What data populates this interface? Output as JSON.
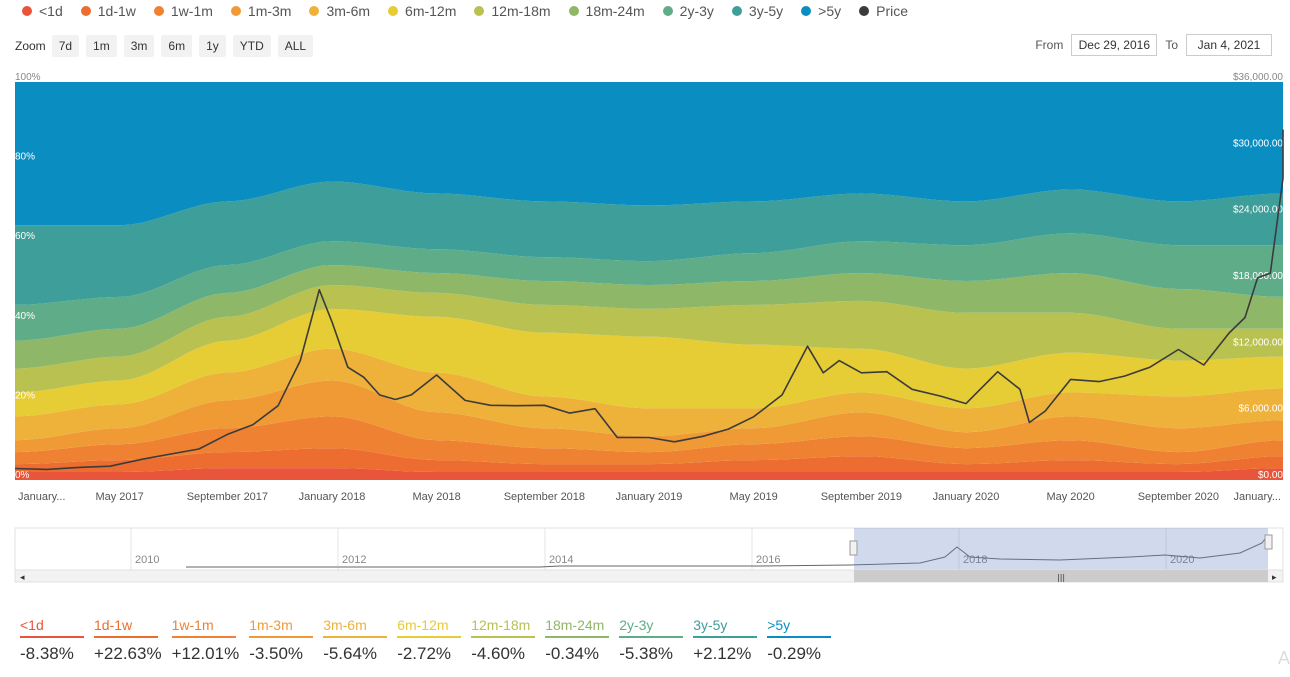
{
  "legend": [
    {
      "label": "<1d",
      "color": "#e8553a"
    },
    {
      "label": "1d-1w",
      "color": "#ec6d2f"
    },
    {
      "label": "1w-1m",
      "color": "#ef8232"
    },
    {
      "label": "1m-3m",
      "color": "#f09a35"
    },
    {
      "label": "3m-6m",
      "color": "#eeb13a"
    },
    {
      "label": "6m-12m",
      "color": "#e6cc35"
    },
    {
      "label": "12m-18m",
      "color": "#b9c150"
    },
    {
      "label": "18m-24m",
      "color": "#8fb768"
    },
    {
      "label": "2y-3y",
      "color": "#5fad88"
    },
    {
      "label": "3y-5y",
      "color": "#3e9e9a"
    },
    {
      "label": ">5y",
      "color": "#0a8ec2"
    },
    {
      "label": "Price",
      "color": "#3b3b3b"
    }
  ],
  "zoom": {
    "label": "Zoom",
    "buttons": [
      "7d",
      "1m",
      "3m",
      "6m",
      "1y",
      "YTD",
      "ALL"
    ]
  },
  "range": {
    "from_label": "From",
    "from_value": "Dec 29, 2016",
    "to_label": "To",
    "to_value": "Jan 4, 2021"
  },
  "chart_data": {
    "type": "area",
    "stacked_percent": true,
    "left_axis": {
      "ticks": [
        "0%",
        "20%",
        "40%",
        "60%",
        "80%",
        "100%"
      ],
      "range": [
        0,
        100
      ]
    },
    "right_axis": {
      "ticks": [
        "$0.00",
        "$6,000.00",
        "$12,000.00",
        "$18,000.00",
        "$24,000.00",
        "$30,000.00",
        "$36,000.00"
      ],
      "range": [
        0,
        36000
      ]
    },
    "x_tick_labels": [
      "January...",
      "May 2017",
      "September 2017",
      "January 2018",
      "May 2018",
      "September 2018",
      "January 2019",
      "May 2019",
      "September 2019",
      "January 2020",
      "May 2020",
      "September 2020",
      "January..."
    ],
    "x": [
      2017.0,
      2017.33,
      2017.67,
      2018.0,
      2018.33,
      2018.67,
      2019.0,
      2019.33,
      2019.67,
      2020.0,
      2020.33,
      2020.67,
      2021.0
    ],
    "series": [
      {
        "name": "<1d",
        "values": [
          2,
          2,
          3,
          3,
          2,
          2,
          2,
          2,
          2,
          2,
          2,
          2,
          3
        ]
      },
      {
        "name": "1d-1w",
        "values": [
          2,
          3,
          4,
          5,
          3,
          2,
          2,
          3,
          4,
          2,
          3,
          2,
          3
        ]
      },
      {
        "name": "1w-1m",
        "values": [
          3,
          4,
          6,
          8,
          5,
          4,
          3,
          4,
          5,
          4,
          5,
          3,
          4
        ]
      },
      {
        "name": "1m-3m",
        "values": [
          3,
          4,
          7,
          9,
          7,
          5,
          4,
          4,
          6,
          4,
          6,
          6,
          5
        ]
      },
      {
        "name": "3m-6m",
        "values": [
          6,
          6,
          7,
          8,
          10,
          8,
          7,
          5,
          5,
          6,
          6,
          8,
          8
        ]
      },
      {
        "name": "6m-12m",
        "values": [
          6,
          6,
          8,
          10,
          14,
          16,
          18,
          16,
          11,
          10,
          10,
          9,
          8
        ]
      },
      {
        "name": "12m-18m",
        "values": [
          6,
          6,
          6,
          6,
          6,
          7,
          7,
          10,
          12,
          14,
          10,
          8,
          7
        ]
      },
      {
        "name": "18m-24m",
        "values": [
          7,
          7,
          6,
          5,
          5,
          6,
          6,
          6,
          7,
          8,
          10,
          10,
          8
        ]
      },
      {
        "name": "2y-3y",
        "values": [
          9,
          8,
          7,
          6,
          6,
          6,
          6,
          7,
          8,
          9,
          10,
          11,
          13
        ]
      },
      {
        "name": "3y-5y",
        "values": [
          20,
          18,
          16,
          15,
          14,
          14,
          14,
          13,
          12,
          11,
          11,
          11,
          13
        ]
      },
      {
        "name": ">5y",
        "values": [
          36,
          36,
          30,
          25,
          28,
          30,
          31,
          30,
          28,
          30,
          27,
          30,
          28
        ]
      }
    ],
    "price": {
      "name": "Price",
      "x": [
        2017.0,
        2017.1,
        2017.2,
        2017.3,
        2017.4,
        2017.5,
        2017.58,
        2017.67,
        2017.75,
        2017.83,
        2017.9,
        2017.96,
        2018.0,
        2018.05,
        2018.1,
        2018.15,
        2018.2,
        2018.25,
        2018.33,
        2018.42,
        2018.5,
        2018.58,
        2018.67,
        2018.75,
        2018.83,
        2018.9,
        2019.0,
        2019.08,
        2019.17,
        2019.25,
        2019.33,
        2019.42,
        2019.5,
        2019.55,
        2019.6,
        2019.67,
        2019.75,
        2019.83,
        2019.92,
        2020.0,
        2020.1,
        2020.17,
        2020.2,
        2020.25,
        2020.33,
        2020.42,
        2020.5,
        2020.58,
        2020.67,
        2020.75,
        2020.83,
        2020.88,
        2020.92,
        2020.96,
        2021.0,
        2021.01
      ],
      "values": [
        1000,
        1000,
        1100,
        1300,
        1800,
        2500,
        2700,
        4300,
        4800,
        7000,
        10500,
        17500,
        14000,
        10500,
        9000,
        8000,
        7000,
        8000,
        9200,
        7500,
        6500,
        7000,
        6500,
        6300,
        6200,
        4000,
        3700,
        3600,
        3800,
        4800,
        5500,
        8000,
        11800,
        10000,
        10500,
        10000,
        9500,
        8500,
        7300,
        7200,
        9500,
        8500,
        5000,
        6500,
        8800,
        9200,
        9100,
        10500,
        11500,
        10700,
        13000,
        15000,
        18000,
        19000,
        27000,
        32000
      ]
    }
  },
  "navigator": {
    "years": [
      "2010",
      "2012",
      "2014",
      "2016",
      "2018",
      "2020"
    ]
  },
  "stats": [
    {
      "label": "<1d",
      "value": "-8.38%",
      "color": "#e8553a"
    },
    {
      "label": "1d-1w",
      "value": "+22.63%",
      "color": "#ec6d2f"
    },
    {
      "label": "1w-1m",
      "value": "+12.01%",
      "color": "#ef8232"
    },
    {
      "label": "1m-3m",
      "value": "-3.50%",
      "color": "#f09a35"
    },
    {
      "label": "3m-6m",
      "value": "-5.64%",
      "color": "#eeb13a"
    },
    {
      "label": "6m-12m",
      "value": "-2.72%",
      "color": "#e6cc35"
    },
    {
      "label": "12m-18m",
      "value": "-4.60%",
      "color": "#b9c150"
    },
    {
      "label": "18m-24m",
      "value": "-0.34%",
      "color": "#8fb768"
    },
    {
      "label": "2y-3y",
      "value": "-5.38%",
      "color": "#5fad88"
    },
    {
      "label": "3y-5y",
      "value": "+2.12%",
      "color": "#3e9e9a"
    },
    {
      "label": ">5y",
      "value": "-0.29%",
      "color": "#0a8ec2"
    }
  ]
}
